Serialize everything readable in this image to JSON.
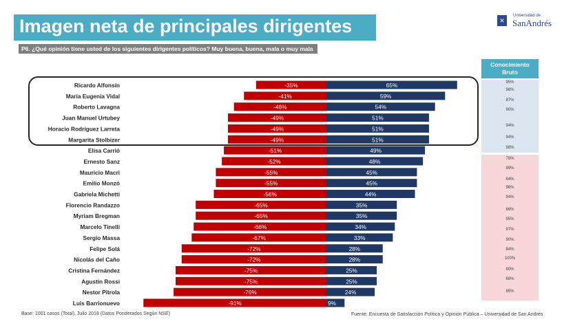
{
  "header": {
    "title": "Imagen neta de principales dirigentes",
    "question": "P6. ¿Qué opinión tiene usted de los siguientes dirigentes políticos? Muy buena, buena, mala o muy mala"
  },
  "logo": {
    "line1": "Universidad de",
    "line2": "SanAndrés",
    "crest": "✕"
  },
  "knowledge": {
    "header_line1": "Conocimiento",
    "header_line2": "Bruto"
  },
  "footer": {
    "base": "Base: 1001 casos (Total),  Julio  2018 (Datos Ponderados Según NSE)",
    "source": "Fuente: Encuesta de Satisfacción Política y Opinión Pública – Universidad de San Andrés"
  },
  "colors": {
    "negative": "#c00000",
    "positive": "#1f3864",
    "panel_blue": "#dce6f1",
    "panel_pink": "#f8d7da",
    "accent": "#4bacc6"
  },
  "chart_data": {
    "type": "bar",
    "orientation": "horizontal-diverging",
    "title": "Imagen neta de principales dirigentes",
    "categories": [
      "Ricardo Alfonsín",
      "María Eugenia Vidal",
      "Roberto Lavagna",
      "Juan Manuel Urtubey",
      "Horacio Rodríguez Larreta",
      "Margarita Stolbizer",
      "Elisa Carrió",
      "Ernesto Sanz",
      "Mauricio Macri",
      "Emilio Monzó",
      "Gabriela Michetti",
      "Florencio Randazzo",
      "Myriam Bregman",
      "Marcelo Tinelli",
      "Sergio Massa",
      "Felipe Solá",
      "Nicolás del Caño",
      "Cristina Fernández",
      "Agustín Rossi",
      "Nestor Pitrola",
      "Luis Barrionuevo"
    ],
    "series": [
      {
        "name": "Negativa",
        "values": [
          -35,
          -41,
          -46,
          -49,
          -49,
          -49,
          -51,
          -52,
          -55,
          -55,
          -56,
          -65,
          -65,
          -66,
          -67,
          -72,
          -72,
          -75,
          -75,
          -76,
          -91
        ],
        "labels": [
          "-35%",
          "-41%",
          "-46%",
          "-49%",
          "-49%",
          "-49%",
          "-51%",
          "-52%",
          "-55%",
          "-55%",
          "-56%",
          "-65%",
          "-65%",
          "-66%",
          "-67%",
          "-72%",
          "-72%",
          "-75%",
          "-75%",
          "-76%",
          "-91%"
        ]
      },
      {
        "name": "Positiva",
        "values": [
          65,
          59,
          54,
          51,
          51,
          51,
          49,
          48,
          45,
          45,
          44,
          35,
          35,
          34,
          33,
          28,
          28,
          25,
          25,
          24,
          9
        ],
        "labels": [
          "65%",
          "59%",
          "54%",
          "51%",
          "51%",
          "51%",
          "49%",
          "48%",
          "45%",
          "45%",
          "44%",
          "35%",
          "35%",
          "34%",
          "33%",
          "28%",
          "28%",
          "25%",
          "25%",
          "24%",
          "9%"
        ]
      }
    ],
    "knowledge_title": "Conocimiento Bruto",
    "knowledge": [
      {
        "value": "95%",
        "group": "blue"
      },
      {
        "value": "98%",
        "group": "blue"
      },
      {
        "value": "87%",
        "group": "blue"
      },
      {
        "value": "90%",
        "group": "blue"
      },
      {
        "value": "94%",
        "group": "blue"
      },
      {
        "value": "94%",
        "group": "blue"
      },
      {
        "value": "98%",
        "group": "blue"
      },
      {
        "value": "78%",
        "group": "pink"
      },
      {
        "value": "99%",
        "group": "pink"
      },
      {
        "value": "64%",
        "group": "pink"
      },
      {
        "value": "96%",
        "group": "pink"
      },
      {
        "value": "94%",
        "group": "pink"
      },
      {
        "value": "66%",
        "group": "pink"
      },
      {
        "value": "95%",
        "group": "pink"
      },
      {
        "value": "97%",
        "group": "pink"
      },
      {
        "value": "90%",
        "group": "pink"
      },
      {
        "value": "84%",
        "group": "pink"
      },
      {
        "value": "100%",
        "group": "pink"
      },
      {
        "value": "80%",
        "group": "pink"
      },
      {
        "value": "68%",
        "group": "pink"
      },
      {
        "value": "85%",
        "group": "pink"
      }
    ],
    "xlim": [
      -100,
      100
    ]
  }
}
